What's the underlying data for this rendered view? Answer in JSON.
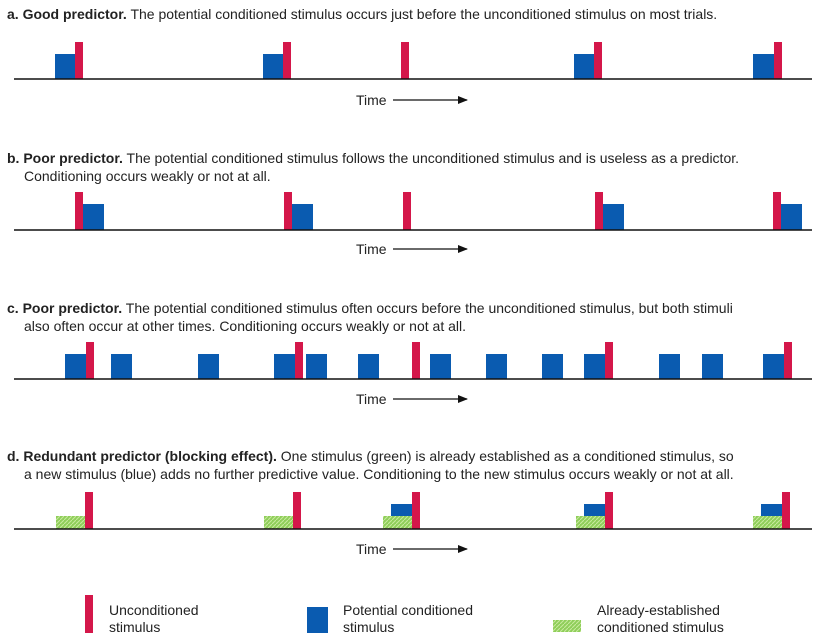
{
  "panels": [
    {
      "id": "a",
      "label": "a. Good predictor.",
      "text": "The potential conditioned stimulus occurs just before the unconditioned stimulus on most trials.",
      "text2": ""
    },
    {
      "id": "b",
      "label": "b. Poor predictor.",
      "text": "The potential conditioned stimulus follows the unconditioned stimulus and is useless as a predictor.",
      "text2": "Conditioning occurs weakly or not at all."
    },
    {
      "id": "c",
      "label": "c. Poor predictor.",
      "text": "The potential conditioned stimulus often occurs before the unconditioned stimulus, but both stimuli",
      "text2": "also often occur at other times. Conditioning occurs weakly or not at all."
    },
    {
      "id": "d",
      "label": "d. Redundant predictor (blocking effect).",
      "text": "One stimulus (green) is already established as a conditioned stimulus, so",
      "text2": "a new stimulus (blue) adds no further predictive value. Conditioning to the new stimulus occurs weakly or not at all."
    }
  ],
  "time_label": "Time",
  "legend": {
    "unconditioned": {
      "line1": "Unconditioned",
      "line2": "stimulus",
      "color": "#d4174a"
    },
    "potential": {
      "line1": "Potential conditioned",
      "line2": "stimulus",
      "color": "#0a5bb0"
    },
    "established": {
      "line1": "Already-established",
      "line2": "conditioned stimulus",
      "color": "#8fce5a"
    }
  },
  "colors": {
    "red": "#d4174a",
    "blue": "#0a5bb0",
    "green": "#8fce5a",
    "axis": "#111111"
  }
}
